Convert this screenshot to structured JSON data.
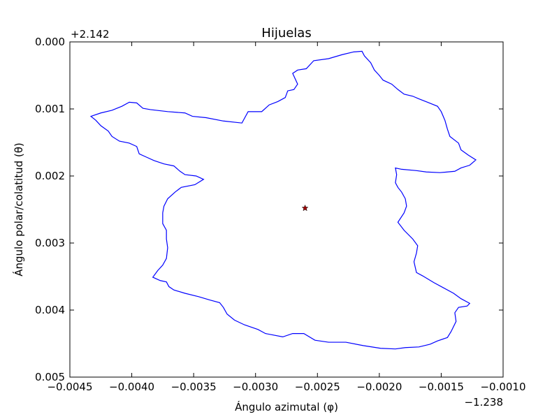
{
  "chart_data": {
    "type": "line",
    "title": "Hijuelas",
    "x_label": "Ángulo azimutal (φ)",
    "y_label": "Ángulo polar/colatitud (θ)",
    "x_offset": "−1.238",
    "y_offset": "+2.142",
    "xlim": [
      -0.0045,
      -0.001
    ],
    "ylim": [
      0.005,
      0
    ],
    "xticks": [
      {
        "value": -0.0045,
        "label": "−0.0045"
      },
      {
        "value": -0.004,
        "label": "−0.0040"
      },
      {
        "value": -0.0035,
        "label": "−0.0035"
      },
      {
        "value": -0.003,
        "label": "−0.0030"
      },
      {
        "value": -0.0025,
        "label": "−0.0025"
      },
      {
        "value": -0.002,
        "label": "−0.0020"
      },
      {
        "value": -0.0015,
        "label": "−0.0015"
      },
      {
        "value": -0.001,
        "label": "−0.0010"
      }
    ],
    "yticks": [
      {
        "value": 0,
        "label": "0.000"
      },
      0.001,
      0.002,
      0.003,
      0.004,
      0.005
    ],
    "grid": false,
    "series": [
      {
        "type": "line",
        "color": "#0000ff",
        "x": [
          -0.00221,
          -0.00214,
          -0.00212,
          -0.00207,
          -0.00204,
          -0.002,
          -0.00197,
          -0.0019,
          -0.00185,
          -0.0018,
          -0.00173,
          -0.00168,
          -0.00161,
          -0.00153,
          -0.0015,
          -0.00147,
          -0.00145,
          -0.00143,
          -0.00136,
          -0.00134,
          -0.00128,
          -0.00122,
          -0.00127,
          -0.00134,
          -0.00139,
          -0.00151,
          -0.00162,
          -0.0017,
          -0.00182,
          -0.00187,
          -0.00186,
          -0.00187,
          -0.00185,
          -0.00182,
          -0.00179,
          -0.00178,
          -0.0018,
          -0.00185,
          -0.0018,
          -0.00173,
          -0.00169,
          -0.0017,
          -0.00172,
          -0.0017,
          -0.00165,
          -0.00156,
          -0.00148,
          -0.0014,
          -0.00134,
          -0.00127,
          -0.00129,
          -0.00136,
          -0.00139,
          -0.00138,
          -0.00142,
          -0.00145,
          -0.00153,
          -0.00159,
          -0.00168,
          -0.00179,
          -0.00187,
          -0.00199,
          -0.00213,
          -0.00227,
          -0.00241,
          -0.00252,
          -0.00261,
          -0.0027,
          -0.00278,
          -0.00292,
          -0.00298,
          -0.00309,
          -0.00317,
          -0.00323,
          -0.00326,
          -0.00329,
          -0.00337,
          -0.00346,
          -0.00357,
          -0.00366,
          -0.0037,
          -0.00372,
          -0.00377,
          -0.00383,
          -0.00379,
          -0.00375,
          -0.00372,
          -0.00371,
          -0.00372,
          -0.00372,
          -0.00375,
          -0.00375,
          -0.00374,
          -0.00371,
          -0.00365,
          -0.0036,
          -0.00349,
          -0.00342,
          -0.00348,
          -0.00357,
          -0.00361,
          -0.00366,
          -0.00374,
          -0.00382,
          -0.00388,
          -0.00394,
          -0.00396,
          -0.00402,
          -0.0041,
          -0.00416,
          -0.00419,
          -0.00425,
          -0.00429,
          -0.00433,
          -0.00425,
          -0.00416,
          -0.00408,
          -0.00402,
          -0.00396,
          -0.00391,
          -0.00385,
          -0.00371,
          -0.00357,
          -0.00351,
          -0.0034,
          -0.00326,
          -0.00311,
          -0.00306,
          -0.00295,
          -0.00289,
          -0.00282,
          -0.00276,
          -0.00274,
          -0.00269,
          -0.00266,
          -0.0027,
          -0.00266,
          -0.00259,
          -0.00253,
          -0.00241,
          -0.0023,
          -0.00221
        ],
        "y": [
          0.00015,
          0.00014,
          0.00021,
          0.00031,
          0.00042,
          0.0005,
          0.00057,
          0.00063,
          0.00071,
          0.00078,
          0.00081,
          0.00085,
          0.0009,
          0.00096,
          0.00104,
          0.00117,
          0.0013,
          0.00141,
          0.00151,
          0.00161,
          0.00169,
          0.00176,
          0.00184,
          0.00188,
          0.00193,
          0.00195,
          0.00194,
          0.00192,
          0.0019,
          0.00188,
          0.00198,
          0.0021,
          0.00217,
          0.00224,
          0.00234,
          0.00245,
          0.00255,
          0.00269,
          0.00281,
          0.00294,
          0.00304,
          0.00315,
          0.00328,
          0.00344,
          0.00349,
          0.00359,
          0.00367,
          0.00375,
          0.00383,
          0.0039,
          0.00394,
          0.00396,
          0.00404,
          0.00417,
          0.00432,
          0.00441,
          0.00446,
          0.00451,
          0.00455,
          0.00456,
          0.00458,
          0.00457,
          0.00453,
          0.00448,
          0.00448,
          0.00445,
          0.00435,
          0.00435,
          0.0044,
          0.00435,
          0.00429,
          0.00422,
          0.00415,
          0.00406,
          0.00396,
          0.00389,
          0.00385,
          0.0038,
          0.00375,
          0.0037,
          0.00365,
          0.00358,
          0.00356,
          0.00351,
          0.00341,
          0.00333,
          0.00323,
          0.00307,
          0.00294,
          0.00281,
          0.00271,
          0.00255,
          0.00245,
          0.00234,
          0.00224,
          0.00217,
          0.00213,
          0.00205,
          0.002,
          0.00198,
          0.00193,
          0.00185,
          0.00182,
          0.00177,
          0.00172,
          0.00167,
          0.00156,
          0.00151,
          0.00148,
          0.00141,
          0.00133,
          0.00125,
          0.00117,
          0.00111,
          0.00106,
          0.00102,
          0.00096,
          0.0009,
          0.00091,
          0.00099,
          0.00101,
          0.00104,
          0.00106,
          0.00111,
          0.00113,
          0.00118,
          0.00121,
          0.00104,
          0.00104,
          0.00094,
          0.00089,
          0.00083,
          0.00073,
          0.00071,
          0.00063,
          0.00047,
          0.00042,
          0.0004,
          0.00028,
          0.00025,
          0.00019,
          0.00015
        ]
      },
      {
        "type": "star",
        "color": "#a00000",
        "x": [
          -0.0026
        ],
        "y": [
          0.00248
        ]
      }
    ]
  }
}
